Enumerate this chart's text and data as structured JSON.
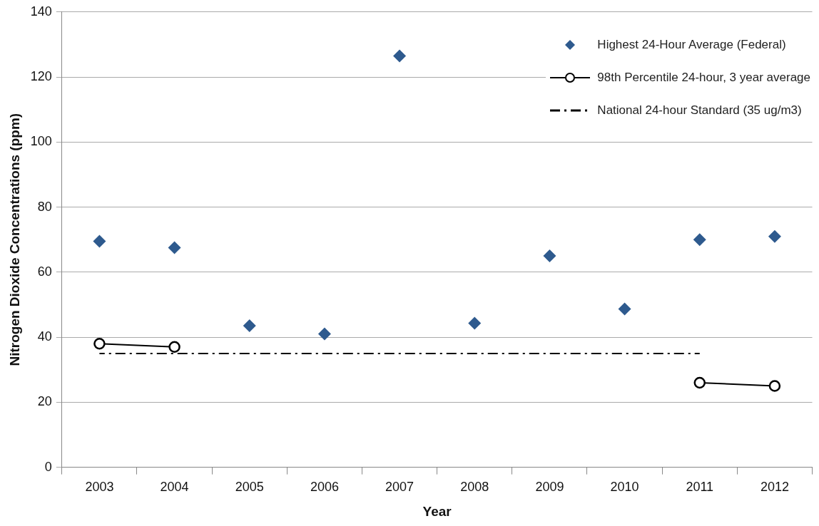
{
  "chart_data": {
    "type": "scatter",
    "xlabel": "Year",
    "ylabel": "Nitrogen Dioxide Concentrations (ppm)",
    "categories": [
      "2003",
      "2004",
      "2005",
      "2006",
      "2007",
      "2008",
      "2009",
      "2010",
      "2011",
      "2012"
    ],
    "series": [
      {
        "name": "Highest 24-Hour Average (Federal)",
        "marker": "diamond",
        "color": "#2e5a8e",
        "values": [
          69.5,
          67.5,
          43.5,
          41,
          126.5,
          44.3,
          65,
          48.7,
          70,
          71
        ]
      },
      {
        "name": "98th Percentile 24-hour, 3 year average",
        "type": "line",
        "marker": "circle",
        "line_style": "solid",
        "color": "#000000",
        "values": [
          38,
          37,
          null,
          null,
          null,
          null,
          null,
          null,
          26,
          25
        ]
      },
      {
        "name": "National 24-hour Standard (35 ug/m3)",
        "type": "line",
        "marker": "none",
        "line_style": "dashdot",
        "color": "#000000",
        "values": [
          35,
          35,
          35,
          35,
          35,
          35,
          35,
          35,
          35,
          null
        ]
      }
    ],
    "ylim": [
      0,
      140
    ],
    "yticks": [
      0,
      20,
      40,
      60,
      80,
      100,
      120,
      140
    ],
    "grid": "y",
    "legend": "top right"
  }
}
